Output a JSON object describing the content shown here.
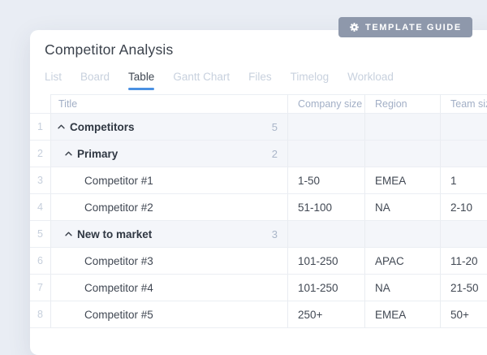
{
  "template_guide": {
    "label": "TEMPLATE GUIDE",
    "icon": "gear-icon"
  },
  "header": {
    "title": "Competitor Analysis"
  },
  "tabs": [
    {
      "label": "List",
      "active": false
    },
    {
      "label": "Board",
      "active": false
    },
    {
      "label": "Table",
      "active": true
    },
    {
      "label": "Gantt Chart",
      "active": false
    },
    {
      "label": "Files",
      "active": false
    },
    {
      "label": "Timelog",
      "active": false
    },
    {
      "label": "Workload",
      "active": false
    }
  ],
  "table": {
    "columns": [
      "Title",
      "Company size",
      "Region",
      "Team size"
    ],
    "rows": [
      {
        "num": "1",
        "type": "group",
        "level": 0,
        "title": "Competitors",
        "count": "5"
      },
      {
        "num": "2",
        "type": "group",
        "level": 1,
        "title": "Primary",
        "count": "2"
      },
      {
        "num": "3",
        "type": "item",
        "level": 2,
        "title": "Competitor #1",
        "company_size": "1-50",
        "region": "EMEA",
        "team_size": "1"
      },
      {
        "num": "4",
        "type": "item",
        "level": 2,
        "title": "Competitor #2",
        "company_size": "51-100",
        "region": "NA",
        "team_size": "2-10"
      },
      {
        "num": "5",
        "type": "group",
        "level": 1,
        "title": "New to market",
        "count": "3"
      },
      {
        "num": "6",
        "type": "item",
        "level": 2,
        "title": "Competitor #3",
        "company_size": "101-250",
        "region": "APAC",
        "team_size": "11-20"
      },
      {
        "num": "7",
        "type": "item",
        "level": 2,
        "title": "Competitor #4",
        "company_size": "101-250",
        "region": "NA",
        "team_size": "21-50"
      },
      {
        "num": "8",
        "type": "item",
        "level": 2,
        "title": "Competitor #5",
        "company_size": "250+",
        "region": "EMEA",
        "team_size": "50+"
      }
    ]
  },
  "colors": {
    "page_background": "#e9edf4",
    "badge_background": "#8e98ab",
    "accent_blue": "#4a90e2",
    "group_row_background": "#f4f6fa"
  }
}
